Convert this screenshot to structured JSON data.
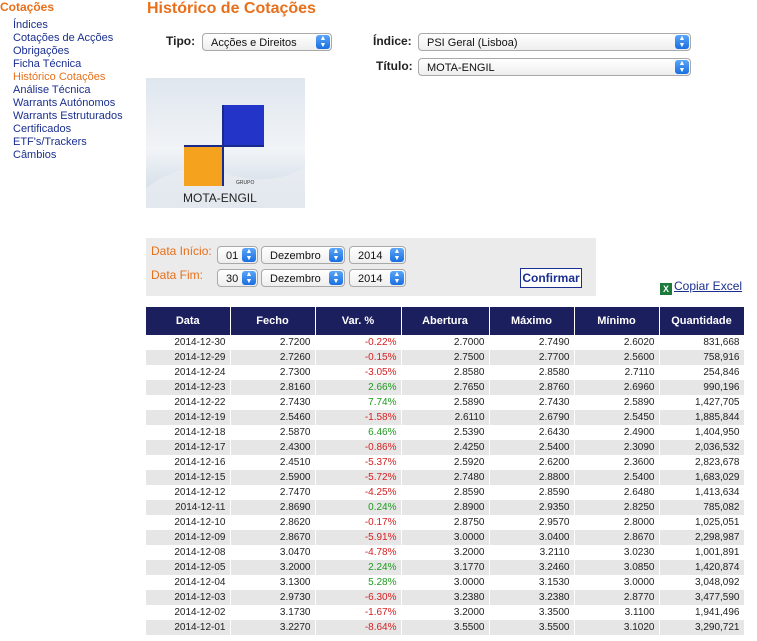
{
  "sidebar": {
    "title": "Cotações",
    "items": [
      {
        "label": "Índices",
        "active": false
      },
      {
        "label": "Cotações de Acções",
        "active": false
      },
      {
        "label": "Obrigações",
        "active": false
      },
      {
        "label": "Ficha Técnica",
        "active": false
      },
      {
        "label": "Histórico Cotações",
        "active": true
      },
      {
        "label": "Análise Técnica",
        "active": false
      },
      {
        "label": "Warrants Autónomos",
        "active": false
      },
      {
        "label": "Warrants Estruturados",
        "active": false
      },
      {
        "label": "Certificados",
        "active": false
      },
      {
        "label": "ETF's/Trackers",
        "active": false
      },
      {
        "label": "Câmbios",
        "active": false
      }
    ]
  },
  "page": {
    "title": "Histórico de Cotações"
  },
  "filters": {
    "tipo_label": "Tipo:",
    "tipo_value": "Acções e Direitos",
    "indice_label": "Índice:",
    "indice_value": "PSI Geral (Lisboa)",
    "titulo_label": "Título:",
    "titulo_value": "MOTA-ENGIL"
  },
  "logo": {
    "grupo": "GRUPO",
    "name": "MOTA-ENGIL"
  },
  "dates": {
    "inicio_label": "Data Início:",
    "inicio_day": "01",
    "inicio_month": "Dezembro",
    "inicio_year": "2014",
    "fim_label": "Data Fim:",
    "fim_day": "30",
    "fim_month": "Dezembro",
    "fim_year": "2014",
    "confirm_label": "Confirmar"
  },
  "excel": {
    "label": "Copiar Excel"
  },
  "colors": {
    "accent": "#e8701a",
    "link": "#1a2f8f",
    "header": "#1b1f5e",
    "negative": "#d62020",
    "positive": "#1e9a1e"
  },
  "table": {
    "headers": [
      "Data",
      "Fecho",
      "Var. %",
      "Abertura",
      "Máximo",
      "Mínimo",
      "Quantidade"
    ],
    "rows": [
      [
        "2014-12-30",
        "2.7200",
        "-0.22%",
        "2.7000",
        "2.7490",
        "2.6020",
        "831,668"
      ],
      [
        "2014-12-29",
        "2.7260",
        "-0.15%",
        "2.7500",
        "2.7700",
        "2.5600",
        "758,916"
      ],
      [
        "2014-12-24",
        "2.7300",
        "-3.05%",
        "2.8580",
        "2.8580",
        "2.7110",
        "254,846"
      ],
      [
        "2014-12-23",
        "2.8160",
        "2.66%",
        "2.7650",
        "2.8760",
        "2.6960",
        "990,196"
      ],
      [
        "2014-12-22",
        "2.7430",
        "7.74%",
        "2.5890",
        "2.7430",
        "2.5890",
        "1,427,705"
      ],
      [
        "2014-12-19",
        "2.5460",
        "-1.58%",
        "2.6110",
        "2.6790",
        "2.5450",
        "1,885,844"
      ],
      [
        "2014-12-18",
        "2.5870",
        "6.46%",
        "2.5390",
        "2.6430",
        "2.4900",
        "1,404,950"
      ],
      [
        "2014-12-17",
        "2.4300",
        "-0.86%",
        "2.4250",
        "2.5400",
        "2.3090",
        "2,036,532"
      ],
      [
        "2014-12-16",
        "2.4510",
        "-5.37%",
        "2.5920",
        "2.6200",
        "2.3600",
        "2,823,678"
      ],
      [
        "2014-12-15",
        "2.5900",
        "-5.72%",
        "2.7480",
        "2.8800",
        "2.5400",
        "1,683,029"
      ],
      [
        "2014-12-12",
        "2.7470",
        "-4.25%",
        "2.8590",
        "2.8590",
        "2.6480",
        "1,413,634"
      ],
      [
        "2014-12-11",
        "2.8690",
        "0.24%",
        "2.8900",
        "2.9350",
        "2.8250",
        "785,082"
      ],
      [
        "2014-12-10",
        "2.8620",
        "-0.17%",
        "2.8750",
        "2.9570",
        "2.8000",
        "1,025,051"
      ],
      [
        "2014-12-09",
        "2.8670",
        "-5.91%",
        "3.0000",
        "3.0400",
        "2.8670",
        "2,298,987"
      ],
      [
        "2014-12-08",
        "3.0470",
        "-4.78%",
        "3.2000",
        "3.2110",
        "3.0230",
        "1,001,891"
      ],
      [
        "2014-12-05",
        "3.2000",
        "2.24%",
        "3.1770",
        "3.2460",
        "3.0850",
        "1,420,874"
      ],
      [
        "2014-12-04",
        "3.1300",
        "5.28%",
        "3.0000",
        "3.1530",
        "3.0000",
        "3,048,092"
      ],
      [
        "2014-12-03",
        "2.9730",
        "-6.30%",
        "3.2380",
        "3.2380",
        "2.8770",
        "3,477,590"
      ],
      [
        "2014-12-02",
        "3.1730",
        "-1.67%",
        "3.2000",
        "3.3500",
        "3.1100",
        "1,941,496"
      ],
      [
        "2014-12-01",
        "3.2270",
        "-8.64%",
        "3.5500",
        "3.5500",
        "3.1020",
        "3,290,721"
      ]
    ]
  }
}
